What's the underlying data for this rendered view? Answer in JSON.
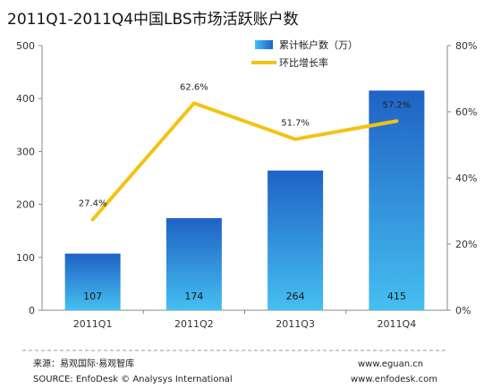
{
  "chart_data": {
    "type": "bar",
    "title": "2011Q1-2011Q4中国LBS市场活跃账户数",
    "categories": [
      "2011Q1",
      "2011Q2",
      "2011Q3",
      "2011Q4"
    ],
    "series": [
      {
        "name": "累计帐户数（万）",
        "type": "bar",
        "axis": "left",
        "values": [
          107,
          174,
          264,
          415
        ],
        "labels": [
          "107",
          "174",
          "264",
          "415"
        ]
      },
      {
        "name": "环比增长率",
        "type": "line",
        "axis": "right",
        "values": [
          27.4,
          62.6,
          51.7,
          57.2
        ],
        "labels": [
          "27.4%",
          "62.6%",
          "51.7%",
          "57.2%"
        ]
      }
    ],
    "left_axis": {
      "range": [
        0,
        500
      ],
      "ticks": [
        "0",
        "100",
        "200",
        "300",
        "400",
        "500"
      ]
    },
    "right_axis": {
      "range": [
        0,
        80
      ],
      "ticks": [
        "0%",
        "20%",
        "40%",
        "60%",
        "80%"
      ]
    },
    "legend_position": "top-right",
    "grid": false,
    "colors": {
      "bar_top": "#1f62c4",
      "bar_bottom": "#42b8ee",
      "line": "#f2c314",
      "axis": "#888888"
    }
  },
  "footer": {
    "source_cn": "来源：易观国际·易观智库",
    "source_en": "SOURCE: EnfoDesk © Analysys International",
    "url1": "www.eguan.cn",
    "url2": "www.enfodesk.com"
  }
}
